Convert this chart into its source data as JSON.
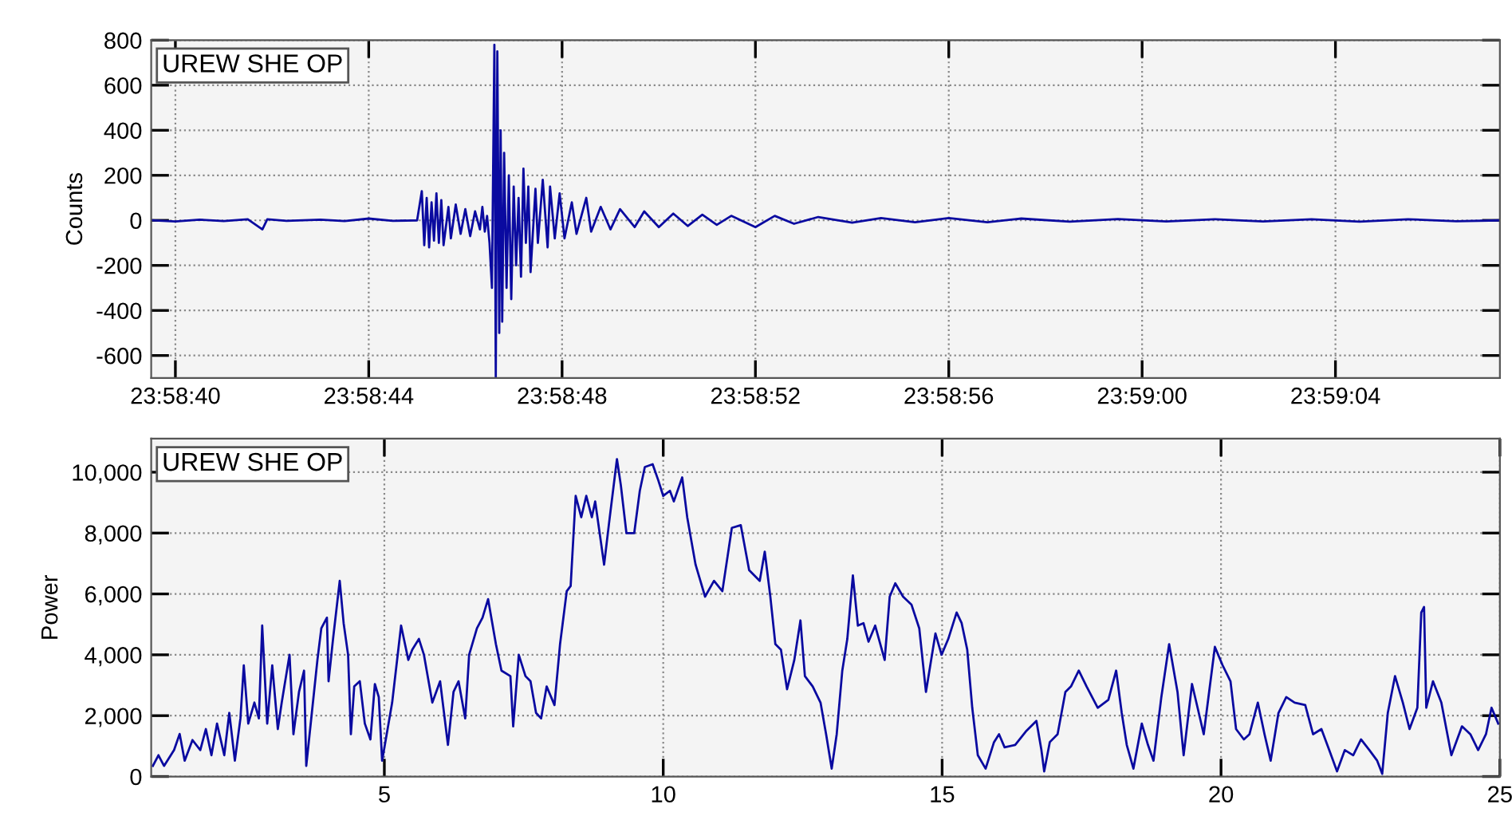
{
  "chart_data": [
    {
      "type": "line",
      "ylabel": "Counts",
      "annotations": [
        "UREW SHE OP"
      ],
      "grid": true,
      "legend": false,
      "xlim": [
        23.977639,
        23.985389
      ],
      "xticks": [
        {
          "value": 23.977778,
          "label": "23:58:40"
        },
        {
          "value": 23.978889,
          "label": "23:58:44"
        },
        {
          "value": 23.98,
          "label": "23:58:48"
        },
        {
          "value": 23.981111,
          "label": "23:58:52"
        },
        {
          "value": 23.982222,
          "label": "23:58:56"
        },
        {
          "value": 23.983333,
          "label": "23:59:00"
        },
        {
          "value": 23.984444,
          "label": "23:59:04"
        }
      ],
      "ylim": [
        -700,
        800
      ],
      "yticks": [
        -600,
        -400,
        -200,
        0,
        200,
        400,
        600,
        800
      ],
      "series": [
        {
          "color": "#0a0aa0",
          "line_style": "solid",
          "x": [
            23.977639,
            23.977778,
            23.977917,
            23.978056,
            23.978194,
            23.978278,
            23.978306,
            23.978417,
            23.978611,
            23.97875,
            23.978889,
            23.979028,
            23.979167,
            23.979194,
            23.979208,
            23.979222,
            23.979236,
            23.97925,
            23.979264,
            23.979278,
            23.979292,
            23.979306,
            23.979319,
            23.979347,
            23.979361,
            23.979389,
            23.979417,
            23.979444,
            23.979472,
            23.9795,
            23.979528,
            23.979542,
            23.979556,
            23.979569,
            23.979583,
            23.979597,
            23.979611,
            23.979619,
            23.979628,
            23.979639,
            23.979647,
            23.979656,
            23.979667,
            23.979681,
            23.979694,
            23.979708,
            23.979722,
            23.979736,
            23.97975,
            23.979764,
            23.979778,
            23.979792,
            23.979806,
            23.979819,
            23.979847,
            23.979861,
            23.979889,
            23.979917,
            23.979931,
            23.979958,
            23.979986,
            23.980014,
            23.980056,
            23.980083,
            23.980139,
            23.980167,
            23.980222,
            23.980278,
            23.980333,
            23.980417,
            23.980472,
            23.980556,
            23.980639,
            23.980722,
            23.980806,
            23.980889,
            23.980972,
            23.981111,
            23.981222,
            23.981333,
            23.981472,
            23.981667,
            23.981833,
            23.982028,
            23.982222,
            23.982444,
            23.982639,
            23.982917,
            23.983194,
            23.983472,
            23.98375,
            23.984028,
            23.984306,
            23.984583,
            23.984861,
            23.985139,
            23.985389
          ],
          "values": [
            0,
            -5,
            3,
            -3,
            5,
            -40,
            5,
            -2,
            3,
            -3,
            8,
            -2,
            0,
            130,
            -110,
            100,
            -120,
            80,
            -90,
            120,
            -100,
            90,
            -110,
            60,
            -80,
            70,
            -60,
            50,
            -70,
            40,
            -40,
            60,
            -50,
            20,
            -100,
            -300,
            780,
            -700,
            750,
            -500,
            400,
            -450,
            300,
            -300,
            200,
            -350,
            150,
            -200,
            100,
            -250,
            230,
            -100,
            150,
            -230,
            140,
            -100,
            180,
            -120,
            150,
            -80,
            120,
            -80,
            80,
            -60,
            100,
            -50,
            60,
            -40,
            50,
            -30,
            40,
            -30,
            30,
            -25,
            25,
            -20,
            20,
            -30,
            20,
            -15,
            15,
            -10,
            10,
            -8,
            10,
            -8,
            8,
            -6,
            6,
            -5,
            5,
            -5,
            5,
            -6,
            5,
            -4,
            0
          ]
        }
      ]
    },
    {
      "type": "line",
      "ylabel": "Power",
      "annotations": [
        "UREW SHE OP"
      ],
      "grid": true,
      "legend": false,
      "xlim": [
        0.82,
        25
      ],
      "xticks": [
        5,
        10,
        15,
        20,
        25
      ],
      "ylim": [
        0,
        11100
      ],
      "yticks": [
        0,
        {
          "value": 2000,
          "label": "2,000"
        },
        {
          "value": 4000,
          "label": "4,000"
        },
        {
          "value": 6000,
          "label": "6,000"
        },
        {
          "value": 8000,
          "label": "8,000"
        },
        {
          "value": 10000,
          "label": "10,000"
        }
      ],
      "series": [
        {
          "color": "#0a0aa0",
          "line_style": "solid",
          "x": [
            0.85,
            0.95,
            1.05,
            1.23,
            1.33,
            1.42,
            1.56,
            1.7,
            1.8,
            1.9,
            2.0,
            2.13,
            2.22,
            2.32,
            2.42,
            2.48,
            2.56,
            2.67,
            2.75,
            2.81,
            2.9,
            2.99,
            3.09,
            3.16,
            3.3,
            3.37,
            3.47,
            3.56,
            3.6,
            3.7,
            3.8,
            3.87,
            3.97,
            4.0,
            4.08,
            4.2,
            4.27,
            4.35,
            4.4,
            4.46,
            4.56,
            4.65,
            4.75,
            4.83,
            4.9,
            4.96,
            5.14,
            5.3,
            5.43,
            5.5,
            5.62,
            5.71,
            5.86,
            6.0,
            6.14,
            6.24,
            6.33,
            6.45,
            6.52,
            6.66,
            6.76,
            6.86,
            7.0,
            7.1,
            7.26,
            7.31,
            7.41,
            7.53,
            7.62,
            7.72,
            7.81,
            7.91,
            8.05,
            8.15,
            8.27,
            8.34,
            8.43,
            8.53,
            8.62,
            8.72,
            8.78,
            8.94,
            9.03,
            9.17,
            9.24,
            9.34,
            9.48,
            9.58,
            9.67,
            9.81,
            9.91,
            10.0,
            10.12,
            10.19,
            10.34,
            10.43,
            10.58,
            10.75,
            10.91,
            11.06,
            11.23,
            11.39,
            11.54,
            11.73,
            11.82,
            11.92,
            12.01,
            12.11,
            12.22,
            12.35,
            12.46,
            12.54,
            12.68,
            12.82,
            12.92,
            13.02,
            13.11,
            13.21,
            13.3,
            13.4,
            13.49,
            13.59,
            13.68,
            13.8,
            13.97,
            14.06,
            14.16,
            14.3,
            14.45,
            14.59,
            14.71,
            14.88,
            14.99,
            15.11,
            15.26,
            15.35,
            15.45,
            15.54,
            15.64,
            15.78,
            15.93,
            16.02,
            16.12,
            16.31,
            16.5,
            16.69,
            16.78,
            16.83,
            16.93,
            17.07,
            17.21,
            17.31,
            17.45,
            17.59,
            17.79,
            17.98,
            18.12,
            18.22,
            18.31,
            18.43,
            18.58,
            18.69,
            18.79,
            18.93,
            19.07,
            19.22,
            19.33,
            19.48,
            19.58,
            19.69,
            19.89,
            20.03,
            20.17,
            20.27,
            20.41,
            20.51,
            20.66,
            20.78,
            20.89,
            21.03,
            21.17,
            21.32,
            21.51,
            21.65,
            21.8,
            21.94,
            22.08,
            22.22,
            22.37,
            22.51,
            22.66,
            22.8,
            22.89,
            22.99,
            23.12,
            23.26,
            23.38,
            23.52,
            23.59,
            23.64,
            23.68,
            23.8,
            23.95,
            24.13,
            24.32,
            24.47,
            24.61,
            24.75,
            24.85,
            24.97
          ],
          "values": [
            350,
            700,
            350,
            870,
            1400,
            520,
            1200,
            870,
            1560,
            700,
            1740,
            700,
            2090,
            520,
            1910,
            3650,
            1740,
            2430,
            1910,
            4960,
            1740,
            3650,
            1560,
            2430,
            4000,
            1390,
            2780,
            3480,
            350,
            2090,
            3830,
            4870,
            5220,
            3130,
            4520,
            6430,
            5040,
            4000,
            1390,
            2960,
            3130,
            1740,
            1220,
            3040,
            2610,
            520,
            2430,
            4960,
            3830,
            4170,
            4520,
            4000,
            2430,
            3130,
            1040,
            2780,
            3130,
            1910,
            4000,
            4870,
            5220,
            5830,
            4350,
            3480,
            3300,
            1650,
            4000,
            3300,
            3130,
            2090,
            1910,
            2960,
            2350,
            4350,
            6090,
            6260,
            9220,
            8520,
            9220,
            8520,
            9040,
            6960,
            8350,
            10430,
            9570,
            8000,
            8000,
            9390,
            10170,
            10260,
            9740,
            9220,
            9390,
            9040,
            9830,
            8520,
            6960,
            5910,
            6430,
            6090,
            8170,
            8260,
            6780,
            6430,
            7390,
            5910,
            4350,
            4170,
            2870,
            3830,
            5130,
            3300,
            2960,
            2430,
            1390,
            260,
            1390,
            3480,
            4520,
            6610,
            4960,
            5040,
            4430,
            4960,
            3830,
            5910,
            6350,
            5910,
            5650,
            4870,
            2780,
            4700,
            4000,
            4520,
            5390,
            5040,
            4170,
            2260,
            700,
            260,
            1130,
            1390,
            960,
            1040,
            1480,
            1830,
            870,
            170,
            1130,
            1390,
            2780,
            2960,
            3480,
            2960,
            2260,
            2520,
            3480,
            2090,
            1040,
            260,
            1740,
            1040,
            520,
            2610,
            4350,
            2780,
            700,
            3040,
            2260,
            1390,
            4260,
            3650,
            3130,
            1560,
            1220,
            1390,
            2430,
            1390,
            520,
            2090,
            2610,
            2430,
            2350,
            1390,
            1560,
            870,
            170,
            870,
            700,
            1220,
            870,
            520,
            90,
            2090,
            3300,
            2430,
            1560,
            2260,
            5390,
            5570,
            2260,
            3130,
            2430,
            700,
            1650,
            1390,
            870,
            1390,
            2260,
            1740
          ]
        }
      ]
    }
  ]
}
